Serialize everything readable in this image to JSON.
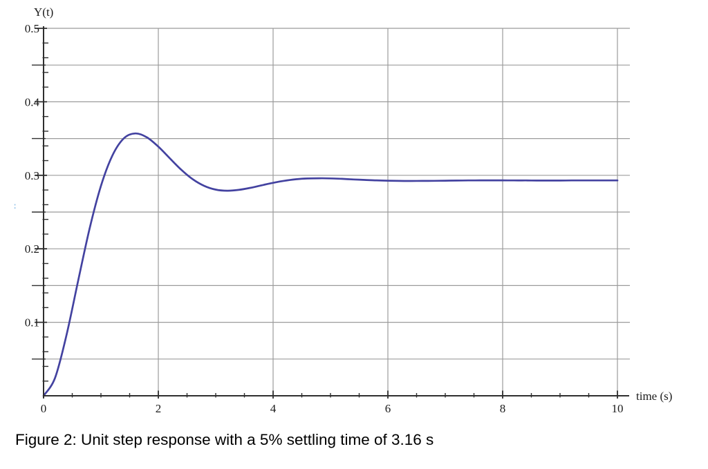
{
  "figure": {
    "caption": "Figure 2: Unit step response with a 5% settling time of 3.16 s"
  },
  "artifact": {
    "text": ":"
  },
  "chart_data": {
    "type": "line",
    "title": "",
    "xlabel": "time (s)",
    "ylabel": "Y(t)",
    "xlim": [
      0,
      10
    ],
    "ylim": [
      0,
      0.5
    ],
    "grid": true,
    "legend": false,
    "x_tick_labels": [
      "0",
      "2",
      "4",
      "6",
      "8",
      "10"
    ],
    "x_minor_tick_step": 0.5,
    "y_tick_labels": [
      "0.1",
      "0.2",
      "0.3",
      "0.4",
      "0.5"
    ],
    "y_grid_step": 0.05,
    "y_minor_tick_step": 0.02,
    "colors": {
      "curve": "#4342a0",
      "grid": "#9b9b9b",
      "axis": "#2e2e2e",
      "text": "#1c1c1c",
      "caption": "#000000",
      "artifact": "#7ab3e3"
    },
    "series": [
      {
        "name": "unit step response Y(t)",
        "x": [
          0,
          0.2,
          0.4,
          0.6,
          0.8,
          1.0,
          1.2,
          1.4,
          1.6,
          1.8,
          2.0,
          2.2,
          2.4,
          2.6,
          2.8,
          3.0,
          3.2,
          3.4,
          3.6,
          3.8,
          4.0,
          4.2,
          4.4,
          4.6,
          4.8,
          5.0,
          5.2,
          5.4,
          5.6,
          5.8,
          6.0,
          6.2,
          6.4,
          6.6,
          6.8,
          7.0,
          7.2,
          7.4,
          7.6,
          7.8,
          8.0,
          8.2,
          8.4,
          8.6,
          8.8,
          9.0,
          9.2,
          9.4,
          9.6,
          9.8,
          10.0
        ],
        "y": [
          0,
          0.0243,
          0.0827,
          0.1555,
          0.2268,
          0.2856,
          0.327,
          0.3504,
          0.357,
          0.3517,
          0.339,
          0.3231,
          0.3075,
          0.2946,
          0.2856,
          0.2805,
          0.279,
          0.2802,
          0.2829,
          0.2864,
          0.2898,
          0.2926,
          0.2946,
          0.2957,
          0.296,
          0.2958,
          0.2952,
          0.2944,
          0.2937,
          0.2931,
          0.2927,
          0.2924,
          0.2923,
          0.2924,
          0.2925,
          0.2927,
          0.2929,
          0.293,
          0.2931,
          0.2931,
          0.2931,
          0.293,
          0.293,
          0.2929,
          0.2929,
          0.2929,
          0.293,
          0.293,
          0.293,
          0.293,
          0.293
        ]
      }
    ],
    "annotations": {
      "steady_state": 0.293,
      "peak": {
        "t": 1.6,
        "y": 0.357
      }
    }
  }
}
